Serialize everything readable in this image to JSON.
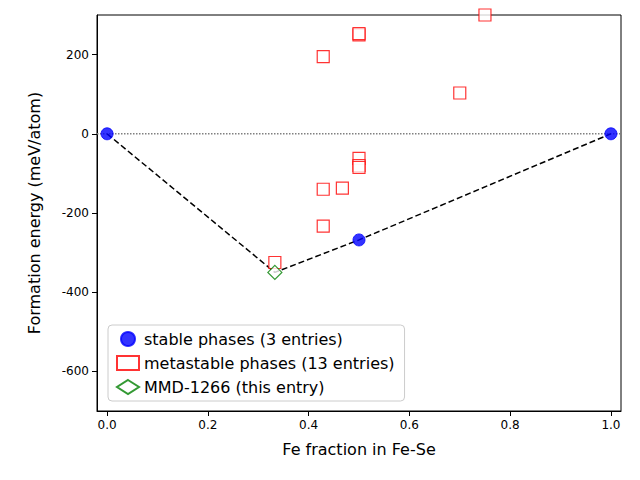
{
  "chart_data": {
    "type": "scatter",
    "x_label": "Fe fraction in Fe-Se",
    "y_label": "Formation energy (meV/atom)",
    "xlim": [
      -0.02,
      1.02
    ],
    "ylim": [
      -700,
      300
    ],
    "xticks": [
      {
        "value": 0,
        "label": "0.0"
      },
      0.2,
      0.4,
      0.6,
      0.8,
      {
        "value": 1,
        "label": "1.0"
      }
    ],
    "yticks": [
      -600,
      -400,
      -200,
      0,
      200
    ],
    "grid": false,
    "legend": "lower left",
    "series": [
      {
        "type": "line",
        "line_style": "dotted",
        "color": "#808080",
        "x": [
          -0.02,
          1.02
        ],
        "values": [
          0,
          0
        ]
      },
      {
        "type": "line",
        "line_style": "dashed",
        "color": "#000000",
        "x": [
          0,
          0.333,
          0.5,
          1
        ],
        "values": [
          0,
          -350,
          -268,
          0
        ]
      },
      {
        "name": "stable phases (3 entries)",
        "type": "scatter",
        "marker": "circle",
        "color": "#0000ff",
        "x": [
          0,
          0.5,
          1
        ],
        "values": [
          0,
          -268,
          0
        ]
      },
      {
        "name": "metastable phases (13 entries)",
        "type": "scatter",
        "marker": "open_square",
        "color": "#ff0000",
        "x": [
          0.333,
          0.429,
          0.429,
          0.429,
          0.467,
          0.5,
          0.5,
          0.5,
          0.5,
          0.5,
          0.7,
          0.75
        ],
        "values": [
          -325,
          195,
          -140,
          -233,
          -137,
          -62,
          -80,
          -85,
          250,
          253,
          103,
          300
        ]
      },
      {
        "name": "MMD-1266 (this entry)",
        "type": "scatter",
        "marker": "open_diamond",
        "color": "#008000",
        "x": [
          0.333
        ],
        "values": [
          -350
        ]
      }
    ]
  }
}
